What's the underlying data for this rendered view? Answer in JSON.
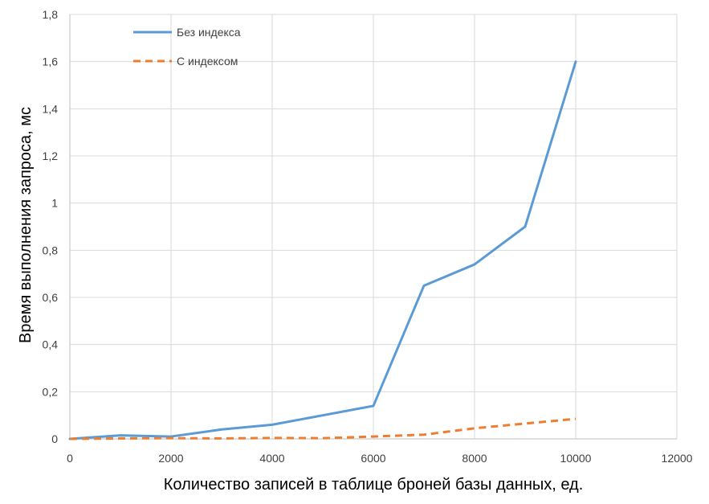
{
  "chart_data": {
    "type": "line",
    "title": "",
    "xlabel": "Количество записей в таблице броней базы данных, ед.",
    "ylabel": "Время выполнения запроса, мс",
    "xlim": [
      0,
      12000
    ],
    "ylim": [
      0,
      1.8
    ],
    "x_ticks": [
      0,
      2000,
      4000,
      6000,
      8000,
      10000,
      12000
    ],
    "x_tick_labels": [
      "0",
      "2000",
      "4000",
      "6000",
      "8000",
      "10000",
      "12000"
    ],
    "y_ticks": [
      0,
      0.2,
      0.4,
      0.6,
      0.8,
      1,
      1.2,
      1.4,
      1.6,
      1.8
    ],
    "y_tick_labels": [
      "0",
      "0,2",
      "0,4",
      "0,6",
      "0,8",
      "1",
      "1,2",
      "1,4",
      "1,6",
      "1,8"
    ],
    "grid": true,
    "legend_position": "top-left",
    "series": [
      {
        "name": "Без индекса",
        "color": "#5B9BD5",
        "dash": "solid",
        "x": [
          0,
          1000,
          2000,
          3000,
          4000,
          5000,
          6000,
          7000,
          8000,
          9000,
          10000
        ],
        "y": [
          0,
          0.015,
          0.01,
          0.04,
          0.06,
          0.1,
          0.14,
          0.65,
          0.74,
          0.9,
          1.6
        ]
      },
      {
        "name": "С индексом",
        "color": "#ED7D31",
        "dash": "dashed",
        "x": [
          0,
          1000,
          2000,
          3000,
          4000,
          5000,
          6000,
          7000,
          8000,
          9000,
          10000
        ],
        "y": [
          0,
          0.002,
          0.003,
          0.002,
          0.004,
          0.003,
          0.01,
          0.018,
          0.045,
          0.065,
          0.085
        ]
      }
    ]
  },
  "colors": {
    "grid": "#D9D9D9",
    "axis": "#BFBFBF"
  }
}
